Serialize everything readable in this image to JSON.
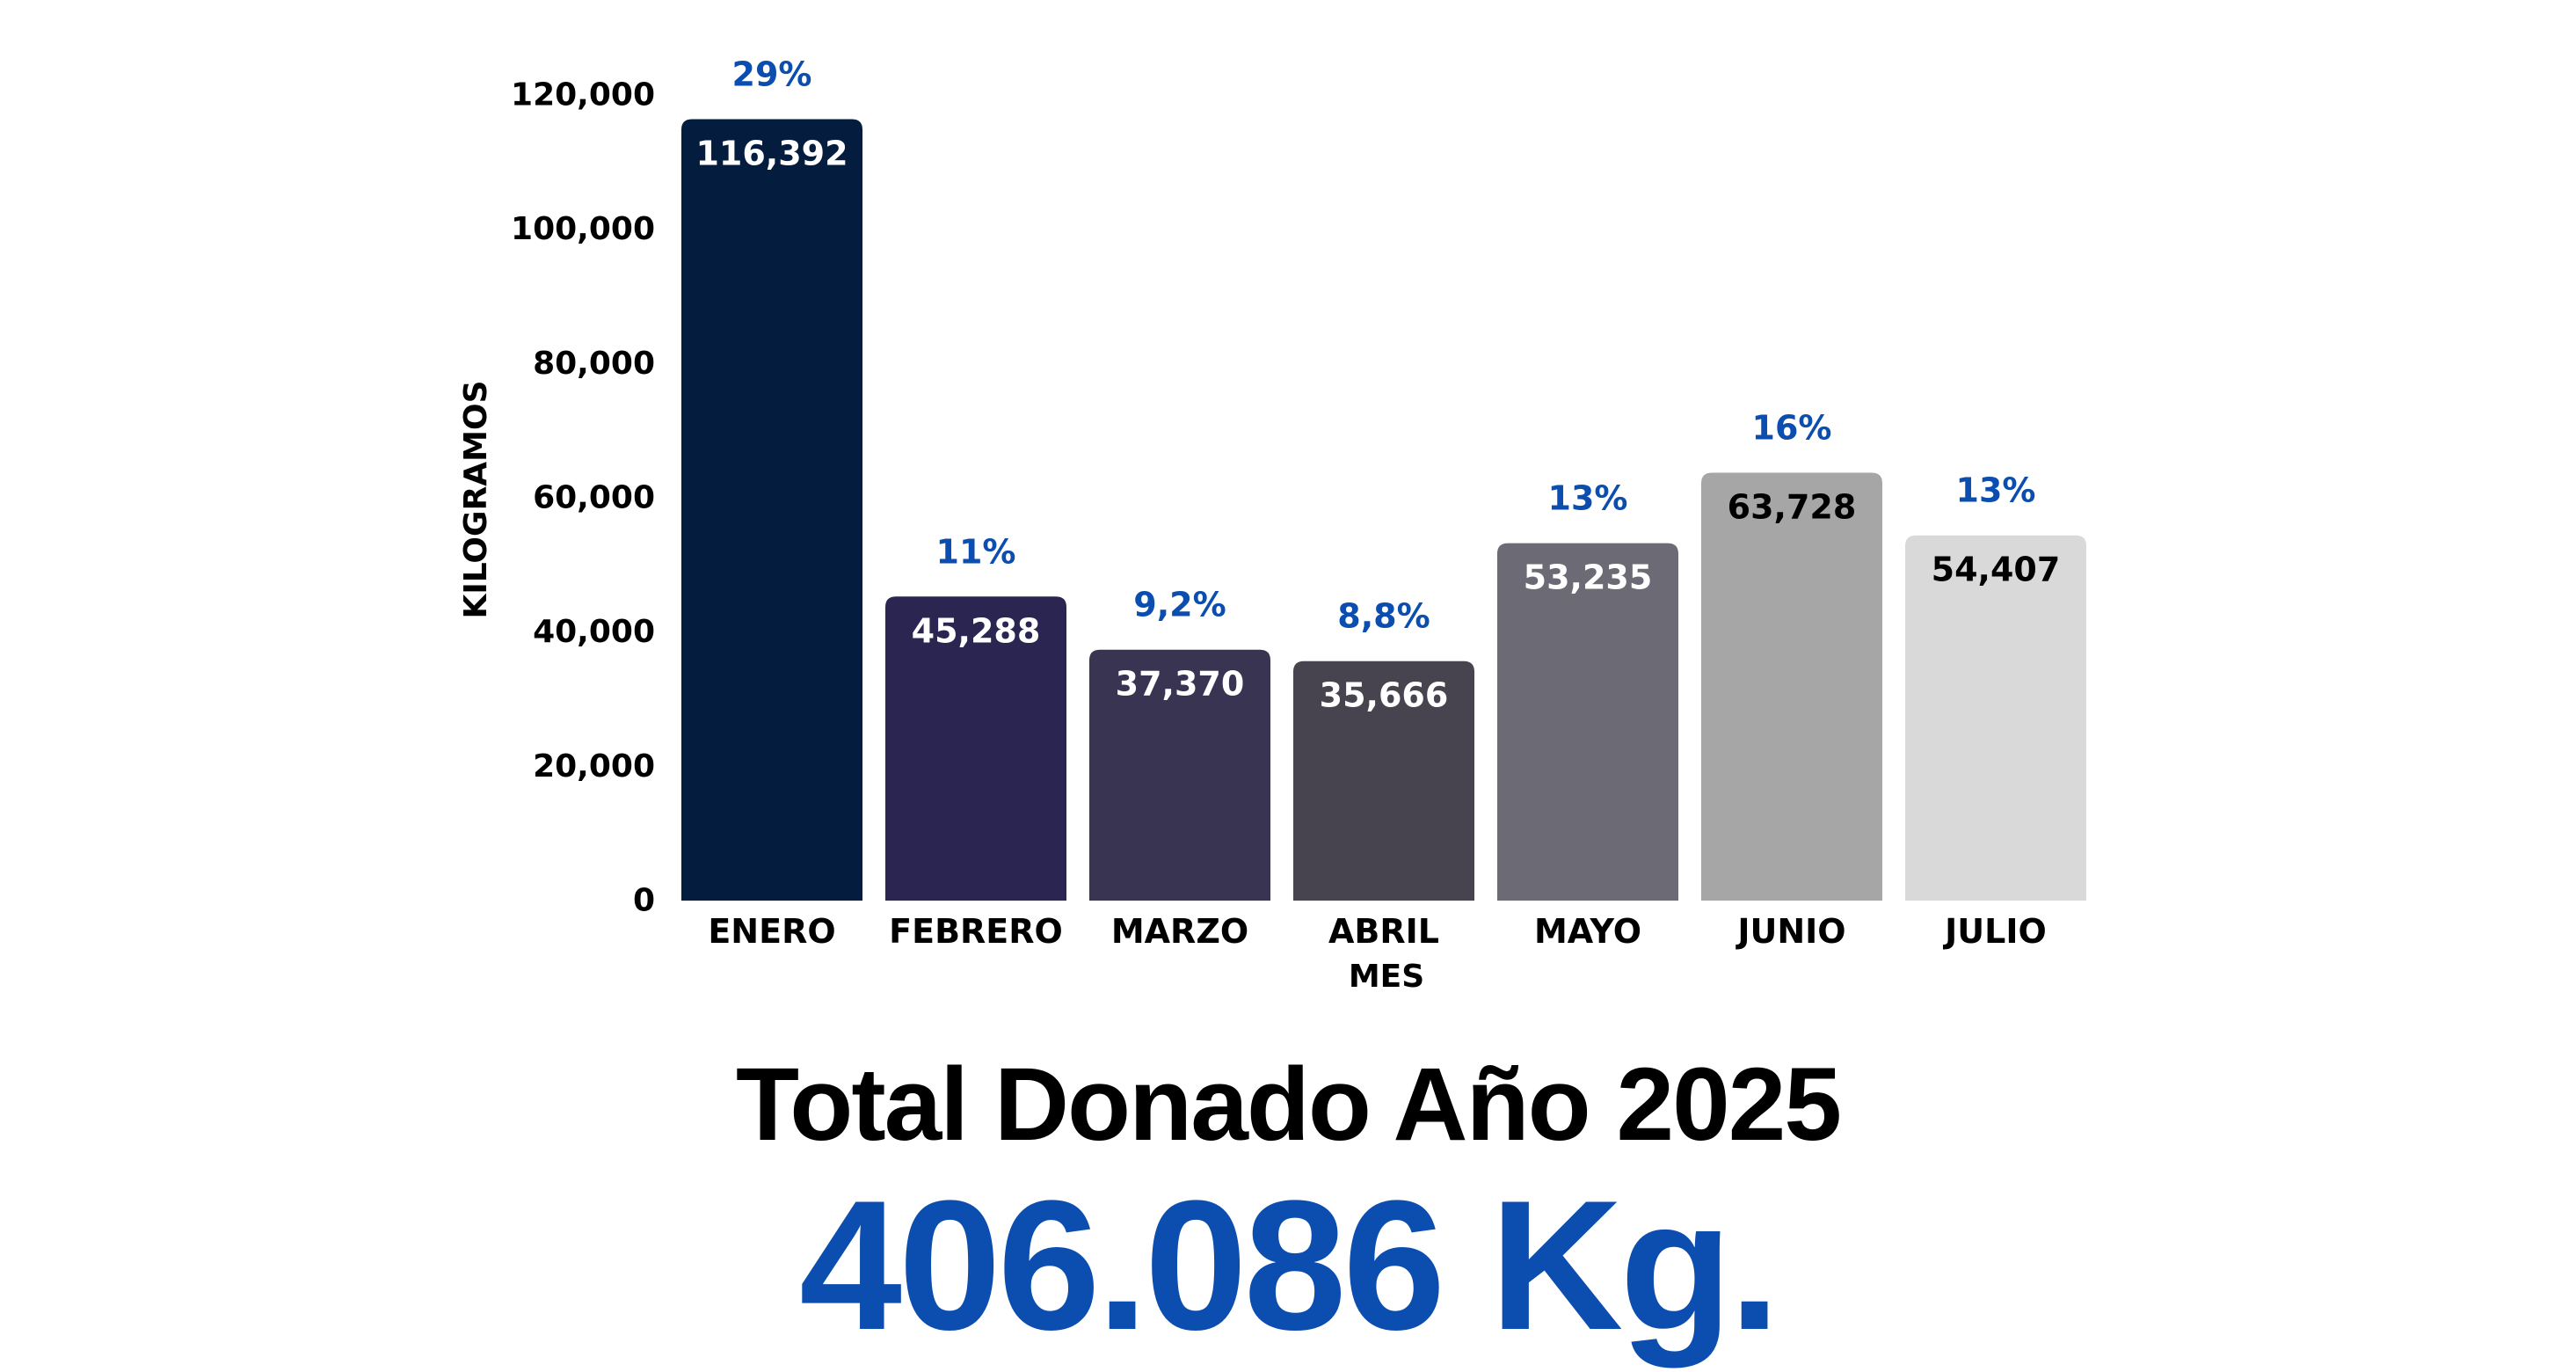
{
  "chart_data": {
    "type": "bar",
    "categories": [
      "ENERO",
      "FEBRERO",
      "MARZO",
      "ABRIL",
      "MAYO",
      "JUNIO",
      "JULIO"
    ],
    "values": [
      116392,
      45288,
      37370,
      35666,
      53235,
      63728,
      54407
    ],
    "value_labels": [
      "116,392",
      "45,288",
      "37,370",
      "35,666",
      "53,235",
      "63,728",
      "54,407"
    ],
    "percent_labels": [
      "29%",
      "11%",
      "9,2%",
      "8,8%",
      "13%",
      "16%",
      "13%"
    ],
    "bar_colors": [
      "#041c3e",
      "#2b2552",
      "#383451",
      "#47444f",
      "#6c6a74",
      "#a6a6a6",
      "#d9d9d9"
    ],
    "value_label_colors": [
      "#ffffff",
      "#ffffff",
      "#ffffff",
      "#ffffff",
      "#ffffff",
      "#000000",
      "#000000"
    ],
    "percent_color": "#0b4eaf",
    "xlabel": "MES",
    "ylabel": "KILOGRAMOS",
    "ylim": [
      0,
      120000
    ],
    "yticks": [
      0,
      20000,
      40000,
      60000,
      80000,
      100000,
      120000
    ],
    "ytick_labels": [
      "0",
      "20,000",
      "40,000",
      "60,000",
      "80,000",
      "100,000",
      "120,000"
    ],
    "grid": false,
    "legend": "none"
  },
  "summary": {
    "title": "Total Donado Año 2025",
    "total": "406.086 Kg.",
    "total_color": "#0b4eaf"
  }
}
